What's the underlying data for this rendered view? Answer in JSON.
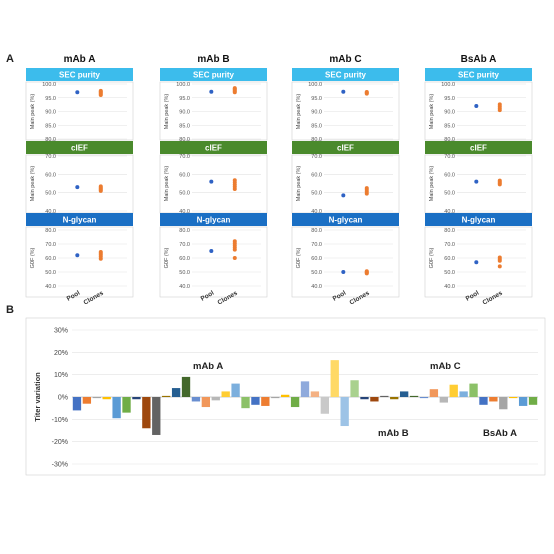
{
  "panel_a": {
    "label": "A",
    "x_categories": [
      "Pool",
      "Clones"
    ],
    "sections": [
      {
        "title": "SEC purity",
        "ylabel": "Main peak (%)",
        "color": "#3cbcec",
        "ticks": [
          "100.0",
          "95.0",
          "90.0",
          "85.0",
          "80.0"
        ],
        "ylim": [
          80,
          100
        ]
      },
      {
        "title": "cIEF",
        "ylabel": "Main peak (%)",
        "color": "#4a8a2c",
        "ticks": [
          "70.0",
          "60.0",
          "50.0",
          "40.0"
        ],
        "ylim": [
          40,
          70
        ]
      },
      {
        "title": "N-glycan",
        "ylabel": "G0F (%)",
        "color": "#1a6fc4",
        "ticks": [
          "80.0",
          "70.0",
          "60.0",
          "50.0",
          "40.0"
        ],
        "ylim": [
          40,
          80
        ]
      }
    ],
    "point_colors": {
      "pool": "#2f62c4",
      "clones": "#ec7c30"
    }
  },
  "panel_b": {
    "label": "B",
    "ylabel": "Titer variation",
    "ticks": [
      "30%",
      "20%",
      "10%",
      "0%",
      "-10%",
      "-20%",
      "-30%"
    ],
    "ylim": [
      -30,
      30
    ],
    "group_labels": [
      {
        "text": "mAb A"
      },
      {
        "text": "mAb B"
      },
      {
        "text": "mAb C"
      },
      {
        "text": "BsAb A"
      }
    ]
  },
  "chart_data": [
    {
      "type": "scatter",
      "antibody": "mAb A",
      "categories": [
        "Pool",
        "Clones"
      ],
      "metrics": [
        {
          "name": "SEC purity",
          "pool": [
            97.0
          ],
          "clones": [
            96.0,
            96.4,
            96.8,
            97.2,
            97.5
          ]
        },
        {
          "name": "cIEF",
          "pool": [
            53.0
          ],
          "clones": [
            51.0,
            51.6,
            52.2,
            52.8,
            53.4
          ]
        },
        {
          "name": "N-glycan",
          "pool": [
            62.0
          ],
          "clones": [
            59.5,
            61.0,
            62.2,
            63.3,
            64.3
          ]
        }
      ]
    },
    {
      "type": "scatter",
      "antibody": "mAb B",
      "categories": [
        "Pool",
        "Clones"
      ],
      "metrics": [
        {
          "name": "SEC purity",
          "pool": [
            97.2
          ],
          "clones": [
            97.0,
            97.4,
            97.8,
            98.2,
            98.5
          ]
        },
        {
          "name": "cIEF",
          "pool": [
            56.0
          ],
          "clones": [
            52.0,
            53.2,
            54.4,
            55.6,
            56.8
          ]
        },
        {
          "name": "N-glycan",
          "pool": [
            65.0
          ],
          "clones": [
            60.0,
            66.0,
            67.5,
            69.0,
            70.5,
            72.0
          ]
        }
      ]
    },
    {
      "type": "scatter",
      "antibody": "mAb C",
      "categories": [
        "Pool",
        "Clones"
      ],
      "metrics": [
        {
          "name": "SEC purity",
          "pool": [
            97.2
          ],
          "clones": [
            96.5,
            96.8,
            97.1
          ]
        },
        {
          "name": "cIEF",
          "pool": [
            48.5
          ],
          "clones": [
            49.5,
            50.5,
            51.5,
            52.5
          ]
        },
        {
          "name": "N-glycan",
          "pool": [
            50.0
          ],
          "clones": [
            49.0,
            49.5,
            50.0,
            50.5
          ]
        }
      ]
    },
    {
      "type": "scatter",
      "antibody": "BsAb A",
      "categories": [
        "Pool",
        "Clones"
      ],
      "metrics": [
        {
          "name": "SEC purity",
          "pool": [
            92.0
          ],
          "clones": [
            90.5,
            91.2,
            91.9,
            92.6
          ]
        },
        {
          "name": "cIEF",
          "pool": [
            56.0
          ],
          "clones": [
            54.5,
            55.2,
            55.9,
            56.6
          ]
        },
        {
          "name": "N-glycan",
          "pool": [
            57.0
          ],
          "clones": [
            54.0,
            58.0,
            59.2,
            60.4
          ]
        }
      ]
    },
    {
      "type": "bar",
      "ylabel": "Titer variation",
      "ylim": [
        -30,
        30
      ],
      "values": [
        -6,
        -3,
        -0.5,
        -1,
        -9.5,
        -7,
        -1,
        -14,
        -17,
        0.5,
        4,
        9,
        -2,
        -4.5,
        -1.5,
        2.5,
        6,
        -5,
        -3.5,
        -4,
        -0.5,
        1,
        -4.5,
        7,
        2.5,
        -7.5,
        16.5,
        -13,
        7.5,
        -1,
        -2,
        0.5,
        -1,
        2.5,
        0.5,
        -0.5,
        3.5,
        -2.5,
        5.5,
        2.5,
        6,
        -3.5,
        -2,
        -5.5,
        -0.5,
        -4,
        -3.5
      ],
      "colors": [
        "#4472c4",
        "#ed7d31",
        "#a5a5a5",
        "#ffc000",
        "#5b9bd5",
        "#70ad47",
        "#264478",
        "#9e480e",
        "#636363",
        "#997300",
        "#255e91",
        "#43682b",
        "#698ed0",
        "#f1975a",
        "#b7b7b7",
        "#ffcd33",
        "#7cafdd",
        "#8cc168",
        "#4472c4",
        "#ed7d31",
        "#a5a5a5",
        "#ffc000",
        "#70ad47",
        "#8faadc",
        "#f4b183",
        "#c9c9c9",
        "#ffd966",
        "#9dc3e6",
        "#a9d18e",
        "#264478",
        "#9e480e",
        "#636363",
        "#997300",
        "#255e91",
        "#43682b",
        "#698ed0",
        "#f1975a",
        "#b7b7b7",
        "#ffcd33",
        "#7cafdd",
        "#8cc168",
        "#4472c4",
        "#ed7d31",
        "#a5a5a5",
        "#ffc000",
        "#5b9bd5",
        "#70ad47"
      ]
    }
  ]
}
